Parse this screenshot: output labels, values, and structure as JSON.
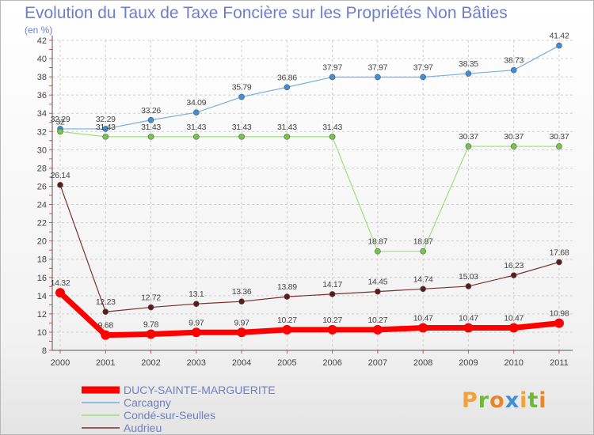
{
  "header": {
    "title": "Evolution du Taux de Taxe Foncière sur les Propriétés Non Bâties",
    "unit": "(en %)"
  },
  "logo": {
    "letters": [
      "P",
      "r",
      "o",
      "x",
      "i",
      "t",
      "i"
    ],
    "colors": [
      "#f2a23a",
      "#6fb83a",
      "#e8862c",
      "#3f8fd6",
      "#f2a23a",
      "#6fb83a",
      "#e8862c"
    ]
  },
  "chart_data": {
    "type": "line",
    "x": [
      "2000",
      "2001",
      "2002",
      "2003",
      "2004",
      "2005",
      "2006",
      "2007",
      "2008",
      "2009",
      "2010",
      "2011"
    ],
    "ylim": [
      8,
      42
    ],
    "yticks": [
      8,
      10,
      12,
      14,
      16,
      18,
      20,
      22,
      24,
      26,
      28,
      30,
      32,
      34,
      36,
      38,
      40,
      42
    ],
    "grid": true,
    "legend_position": "bottom-left",
    "series": [
      {
        "name": "DUCY-SAINTE-MARGUERITE",
        "color": "#ff0000",
        "marker": "#ff0000",
        "width": 7,
        "r": 6,
        "values": [
          14.32,
          9.68,
          9.78,
          9.97,
          9.97,
          10.27,
          10.27,
          10.27,
          10.47,
          10.47,
          10.47,
          10.98
        ],
        "labels": [
          "14.32",
          "9.68",
          "9.78",
          "9.97",
          "9.97",
          "10.27",
          "10.27",
          "10.27",
          "10.47",
          "10.47",
          "10.47",
          "10.98"
        ]
      },
      {
        "name": "Carcagny",
        "color": "#7aaedc",
        "marker": "#3f8fd6",
        "width": 1.2,
        "r": 3.5,
        "values": [
          32.29,
          32.29,
          33.26,
          34.09,
          35.79,
          36.86,
          37.97,
          37.97,
          37.97,
          38.35,
          38.73,
          41.42
        ],
        "labels": [
          "32.29",
          "32.29",
          "33.26",
          "34.09",
          "35.79",
          "36.86",
          "37.97",
          "37.97",
          "37.97",
          "38.35",
          "38.73",
          "41.42"
        ]
      },
      {
        "name": "Condé-sur-Seulles",
        "color": "#9ee07a",
        "marker": "#74c843",
        "width": 1.2,
        "r": 3.5,
        "values": [
          32,
          31.43,
          31.43,
          31.43,
          31.43,
          31.43,
          31.43,
          18.87,
          18.87,
          30.37,
          30.37,
          30.37
        ],
        "labels": [
          "32",
          "31.43",
          "31.43",
          "31.43",
          "31.43",
          "31.43",
          "31.43",
          "18.87",
          "18.87",
          "30.37",
          "30.37",
          "30.37"
        ]
      },
      {
        "name": "Audrieu",
        "color": "#7a2e2e",
        "marker": "#5e1a1a",
        "width": 1.2,
        "r": 3.5,
        "values": [
          26.14,
          12.23,
          12.72,
          13.1,
          13.36,
          13.89,
          14.17,
          14.45,
          14.74,
          15.03,
          16.23,
          17.68
        ],
        "labels": [
          "26.14",
          "12.23",
          "12.72",
          "13.1",
          "13.36",
          "13.89",
          "14.17",
          "14.45",
          "14.74",
          "15.03",
          "16.23",
          "17.68"
        ]
      }
    ]
  }
}
